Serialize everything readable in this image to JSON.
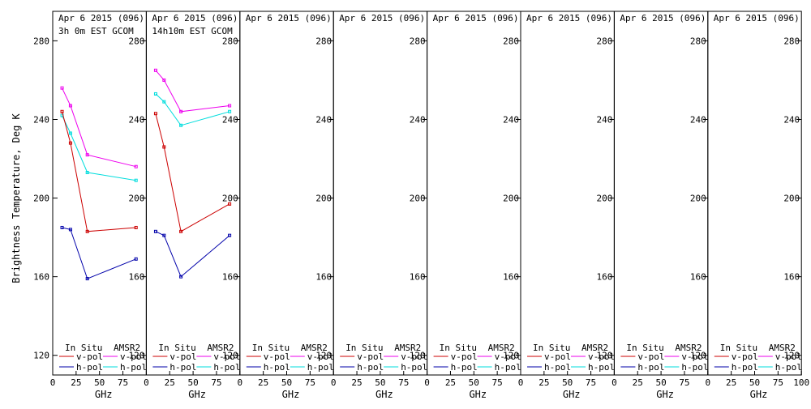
{
  "ylabel": "Brightness Temperature, Deg K",
  "xlabel": "GHz",
  "legend": {
    "insitu_title": "In Situ",
    "amsr2_title": "AMSR2",
    "vpol": "v-pol",
    "hpol": "h-pol"
  },
  "colors": {
    "insitu_v": "#cc0000",
    "insitu_h": "#0000aa",
    "amsr2_v": "#ee00ee",
    "amsr2_h": "#00dddd",
    "axis": "#000000",
    "background": "#ffffff"
  },
  "chart_data": [
    {
      "type": "line",
      "title": "Apr 6 2015 (096)",
      "subtitle": "3h 0m EST GCOM",
      "xlim": [
        0,
        100
      ],
      "ylim": [
        110,
        295
      ],
      "xticks": [
        0,
        25,
        50,
        75
      ],
      "yticks": [
        120,
        160,
        200,
        240,
        280
      ],
      "series": [
        {
          "key": "amsr2_v",
          "x": [
            10,
            19,
            37,
            89
          ],
          "values": [
            256,
            247,
            222,
            216
          ]
        },
        {
          "key": "amsr2_h",
          "x": [
            10,
            19,
            37,
            89
          ],
          "values": [
            242,
            233,
            213,
            209
          ]
        },
        {
          "key": "insitu_v",
          "x": [
            10,
            19,
            37,
            89
          ],
          "values": [
            244,
            228,
            183,
            185
          ]
        },
        {
          "key": "insitu_h",
          "x": [
            10,
            19,
            37,
            89
          ],
          "values": [
            185,
            184,
            159,
            169
          ]
        }
      ]
    },
    {
      "type": "line",
      "title": "Apr 6 2015 (096)",
      "subtitle": "14h10m EST GCOM",
      "xlim": [
        0,
        100
      ],
      "ylim": [
        110,
        295
      ],
      "xticks": [
        0,
        25,
        50,
        75
      ],
      "yticks": [
        120,
        160,
        200,
        240,
        280
      ],
      "series": [
        {
          "key": "amsr2_v",
          "x": [
            10,
            19,
            37,
            89
          ],
          "values": [
            265,
            260,
            244,
            247
          ]
        },
        {
          "key": "amsr2_h",
          "x": [
            10,
            19,
            37,
            89
          ],
          "values": [
            253,
            249,
            237,
            244
          ]
        },
        {
          "key": "insitu_v",
          "x": [
            10,
            19,
            37,
            89
          ],
          "values": [
            243,
            226,
            183,
            197
          ]
        },
        {
          "key": "insitu_h",
          "x": [
            10,
            19,
            37,
            89
          ],
          "values": [
            183,
            181,
            160,
            181
          ]
        }
      ]
    },
    {
      "type": "line",
      "title": "Apr 6 2015 (096)",
      "subtitle": "",
      "xlim": [
        0,
        100
      ],
      "ylim": [
        110,
        295
      ],
      "xticks": [
        0,
        25,
        50,
        75
      ],
      "yticks": [
        120,
        160,
        200,
        240,
        280
      ],
      "series": []
    },
    {
      "type": "line",
      "title": "Apr 6 2015 (096)",
      "subtitle": "",
      "xlim": [
        0,
        100
      ],
      "ylim": [
        110,
        295
      ],
      "xticks": [
        0,
        25,
        50,
        75
      ],
      "yticks": [
        120,
        160,
        200,
        240,
        280
      ],
      "series": []
    },
    {
      "type": "line",
      "title": "Apr 6 2015 (096)",
      "subtitle": "",
      "xlim": [
        0,
        100
      ],
      "ylim": [
        110,
        295
      ],
      "xticks": [
        0,
        25,
        50,
        75
      ],
      "yticks": [
        120,
        160,
        200,
        240,
        280
      ],
      "series": []
    },
    {
      "type": "line",
      "title": "Apr 6 2015 (096)",
      "subtitle": "",
      "xlim": [
        0,
        100
      ],
      "ylim": [
        110,
        295
      ],
      "xticks": [
        0,
        25,
        50,
        75
      ],
      "yticks": [
        120,
        160,
        200,
        240,
        280
      ],
      "series": []
    },
    {
      "type": "line",
      "title": "Apr 6 2015 (096)",
      "subtitle": "",
      "xlim": [
        0,
        100
      ],
      "ylim": [
        110,
        295
      ],
      "xticks": [
        0,
        25,
        50,
        75
      ],
      "yticks": [
        120,
        160,
        200,
        240,
        280
      ],
      "series": []
    },
    {
      "type": "line",
      "title": "Apr 6 2015 (096)",
      "subtitle": "",
      "xlim": [
        0,
        100
      ],
      "ylim": [
        110,
        295
      ],
      "xticks": [
        0,
        25,
        50,
        75,
        100
      ],
      "yticks": [
        120,
        160,
        200,
        240,
        280
      ],
      "series": []
    }
  ]
}
